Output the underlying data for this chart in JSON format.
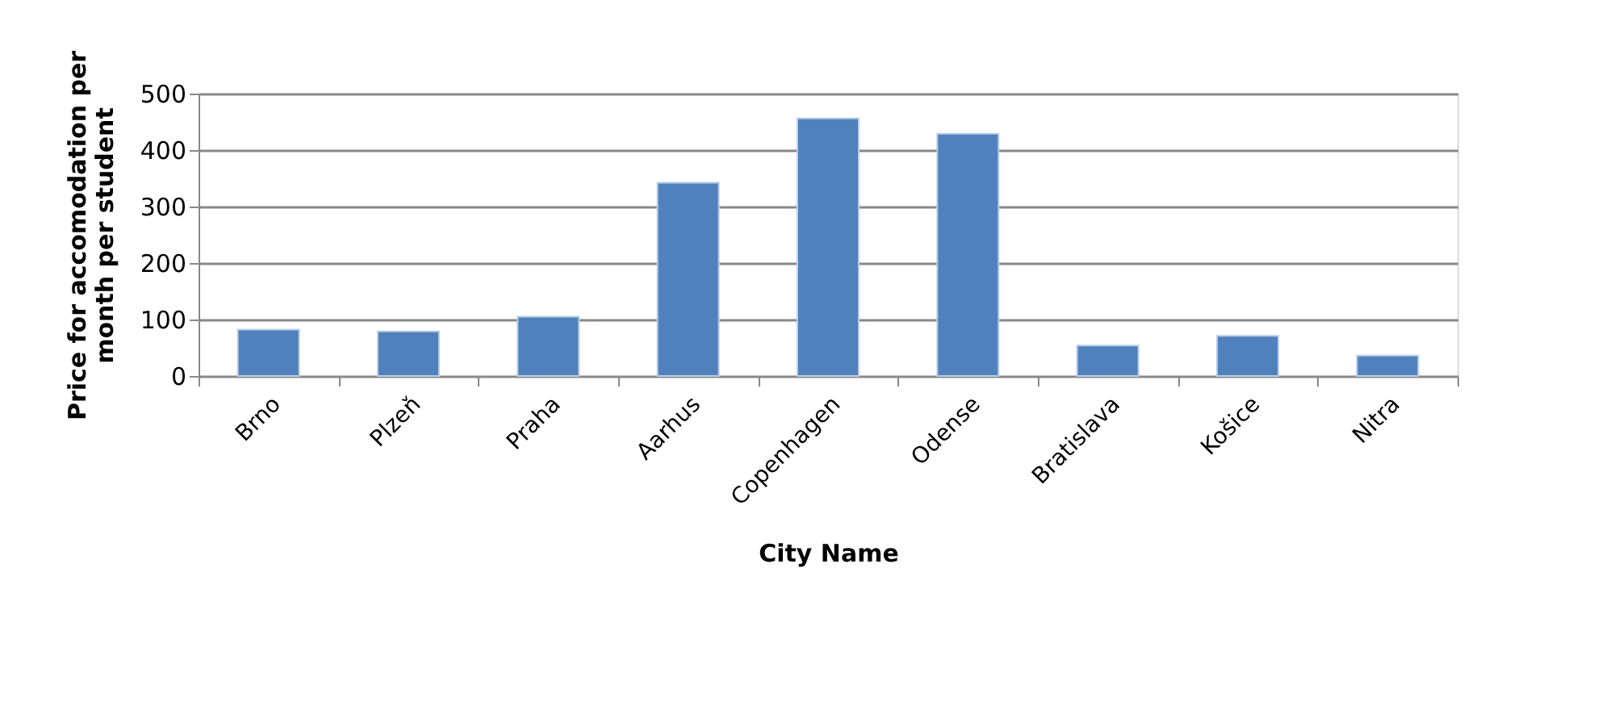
{
  "chart_data": {
    "type": "bar",
    "xlabel": "City Name",
    "ylabel": "Price for accomodation per month per student",
    "categories": [
      "Brno",
      "Plzeň",
      "Praha",
      "Aarhus",
      "Copenhagen",
      "Odense",
      "Bratislava",
      "Košice",
      "Nitra"
    ],
    "values": [
      82,
      79,
      105,
      342,
      456,
      429,
      54,
      71,
      36
    ],
    "color": "#4f81bd",
    "ylim": [
      0,
      500
    ],
    "yticks": [
      0,
      100,
      200,
      300,
      400,
      500
    ],
    "grid": "y"
  }
}
